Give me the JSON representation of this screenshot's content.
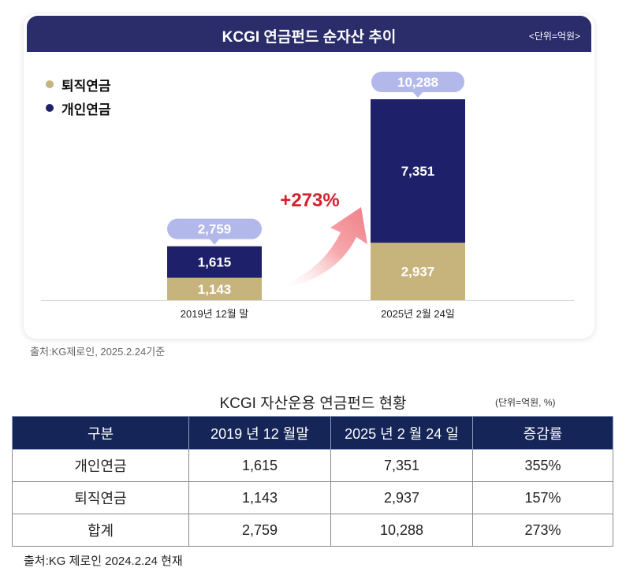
{
  "card": {
    "title": "KCGI 연금펀드 순자산 추이",
    "unit": "<단위=억원>"
  },
  "legend": [
    {
      "label": "퇴직연금",
      "color": "#c6b47c"
    },
    {
      "label": "개인연금",
      "color": "#1e2069"
    }
  ],
  "growth_label": "+273%",
  "chart_data": {
    "type": "bar",
    "stacked": true,
    "title": "KCGI 연금펀드 순자산 추이",
    "unit": "<단위=억원>",
    "categories": [
      "2019년 12월 말",
      "2025년 2월 24일"
    ],
    "series": [
      {
        "name": "퇴직연금",
        "values": [
          1143,
          2937
        ],
        "labels": [
          "1,143",
          "2,937"
        ],
        "color": "#c6b47c"
      },
      {
        "name": "개인연금",
        "values": [
          1615,
          7351
        ],
        "labels": [
          "1,615",
          "7,351"
        ],
        "color": "#1e2069"
      }
    ],
    "totals": [
      2759,
      10288
    ],
    "total_labels": [
      "2,759",
      "10,288"
    ],
    "total_bubble_color": "#b3b8ea",
    "legend_position": "top-left",
    "annotation": "+273%",
    "grid": false
  },
  "source1": "출처:KG제로인, 2025.2.24기준",
  "table": {
    "title": "KCGI 자산운용  연금펀드  현황",
    "unit": "(단위=억원, %)",
    "headers": [
      "구분",
      "2019 년 12 월말",
      "2025 년 2 월 24 일",
      "증감률"
    ],
    "rows": [
      [
        "개인연금",
        "1,615",
        "7,351",
        "355%"
      ],
      [
        "퇴직연금",
        "1,143",
        "2,937",
        "157%"
      ],
      [
        "합계",
        "2,759",
        "10,288",
        "273%"
      ]
    ]
  },
  "source2": "출처:KG 제로인  2024.2.24  현재"
}
